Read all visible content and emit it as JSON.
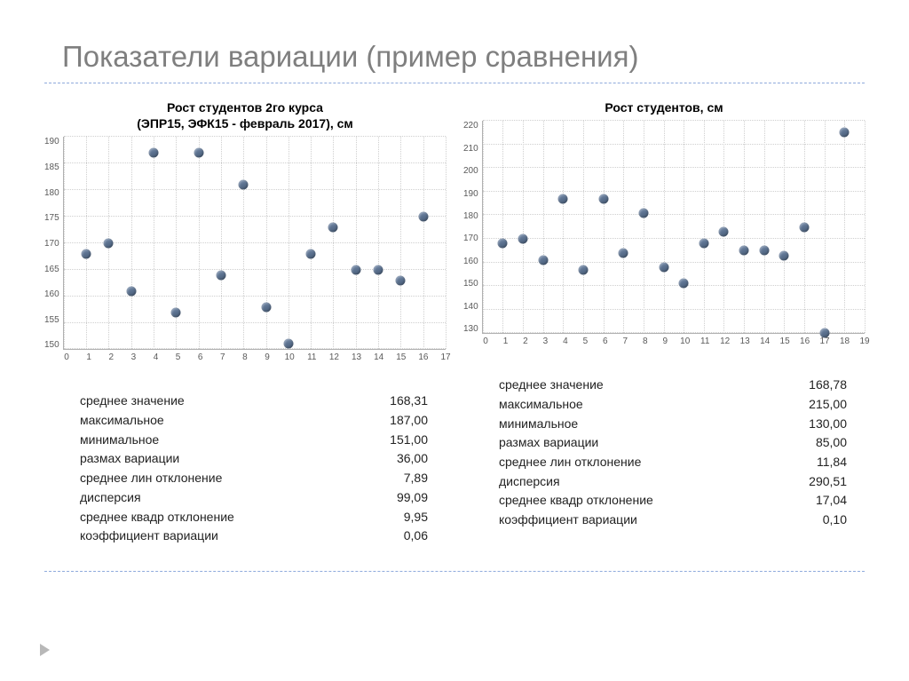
{
  "slide_title": "Показатели вариации (пример сравнения)",
  "page": {
    "background_color": "#ffffff",
    "title_color": "#7f7f7f",
    "title_fontsize": 33,
    "divider_color": "#8faadc",
    "marker_color": "#b8b8b8"
  },
  "panels": [
    {
      "chart": {
        "type": "scatter",
        "title": "Рост студентов 2го курса\n(ЭПР15, ЭФК15 - февраль 2017), см",
        "title_fontsize": 14,
        "title_weight": "bold",
        "xlim": [
          0,
          17
        ],
        "ylim": [
          150,
          190
        ],
        "ytick_step": 5,
        "xticks": [
          0,
          1,
          2,
          3,
          4,
          5,
          6,
          7,
          8,
          9,
          10,
          11,
          12,
          13,
          14,
          15,
          16,
          17
        ],
        "grid_color": "#cfcfcf",
        "axis_color": "#b0b0b0",
        "label_fontsize": 10,
        "label_color": "#595959",
        "marker_color": "#5a708e",
        "marker_size": 11,
        "points": [
          {
            "x": 1,
            "y": 168
          },
          {
            "x": 2,
            "y": 170
          },
          {
            "x": 3,
            "y": 161
          },
          {
            "x": 4,
            "y": 187
          },
          {
            "x": 5,
            "y": 157
          },
          {
            "x": 6,
            "y": 187
          },
          {
            "x": 7,
            "y": 164
          },
          {
            "x": 8,
            "y": 181
          },
          {
            "x": 9,
            "y": 158
          },
          {
            "x": 10,
            "y": 151
          },
          {
            "x": 11,
            "y": 168
          },
          {
            "x": 12,
            "y": 173
          },
          {
            "x": 13,
            "y": 165
          },
          {
            "x": 14,
            "y": 165
          },
          {
            "x": 15,
            "y": 163
          },
          {
            "x": 16,
            "y": 175
          }
        ]
      },
      "stats": [
        {
          "label": "среднее значение",
          "value": "168,31"
        },
        {
          "label": "максимальное",
          "value": "187,00"
        },
        {
          "label": "минимальное",
          "value": "151,00"
        },
        {
          "label": "размах вариации",
          "value": "36,00"
        },
        {
          "label": "среднее лин отклонение",
          "value": "7,89"
        },
        {
          "label": "дисперсия",
          "value": "99,09"
        },
        {
          "label": "среднее квадр отклонение",
          "value": "9,95"
        },
        {
          "label": "коэффициент вариации",
          "value": "0,06"
        }
      ]
    },
    {
      "chart": {
        "type": "scatter",
        "title": "Рост студентов, см",
        "title_fontsize": 14,
        "title_weight": "bold",
        "xlim": [
          0,
          19
        ],
        "ylim": [
          130,
          220
        ],
        "ytick_step": 10,
        "xticks": [
          0,
          1,
          2,
          3,
          4,
          5,
          6,
          7,
          8,
          9,
          10,
          11,
          12,
          13,
          14,
          15,
          16,
          17,
          18,
          19
        ],
        "grid_color": "#cfcfcf",
        "axis_color": "#b0b0b0",
        "label_fontsize": 10,
        "label_color": "#595959",
        "marker_color": "#5a708e",
        "marker_size": 11,
        "points": [
          {
            "x": 1,
            "y": 168
          },
          {
            "x": 2,
            "y": 170
          },
          {
            "x": 3,
            "y": 161
          },
          {
            "x": 4,
            "y": 187
          },
          {
            "x": 5,
            "y": 157
          },
          {
            "x": 6,
            "y": 187
          },
          {
            "x": 7,
            "y": 164
          },
          {
            "x": 8,
            "y": 181
          },
          {
            "x": 9,
            "y": 158
          },
          {
            "x": 10,
            "y": 151
          },
          {
            "x": 11,
            "y": 168
          },
          {
            "x": 12,
            "y": 173
          },
          {
            "x": 13,
            "y": 165
          },
          {
            "x": 14,
            "y": 165
          },
          {
            "x": 15,
            "y": 163
          },
          {
            "x": 16,
            "y": 175
          },
          {
            "x": 17,
            "y": 130
          },
          {
            "x": 18,
            "y": 215
          }
        ]
      },
      "stats": [
        {
          "label": "среднее значение",
          "value": "168,78"
        },
        {
          "label": "максимальное",
          "value": "215,00"
        },
        {
          "label": "минимальное",
          "value": "130,00"
        },
        {
          "label": "размах вариации",
          "value": "85,00"
        },
        {
          "label": "среднее лин отклонение",
          "value": "11,84"
        },
        {
          "label": "дисперсия",
          "value": "290,51"
        },
        {
          "label": "среднее квадр отклонение",
          "value": "17,04"
        },
        {
          "label": "коэффициент вариации",
          "value": "0,10"
        }
      ]
    }
  ]
}
